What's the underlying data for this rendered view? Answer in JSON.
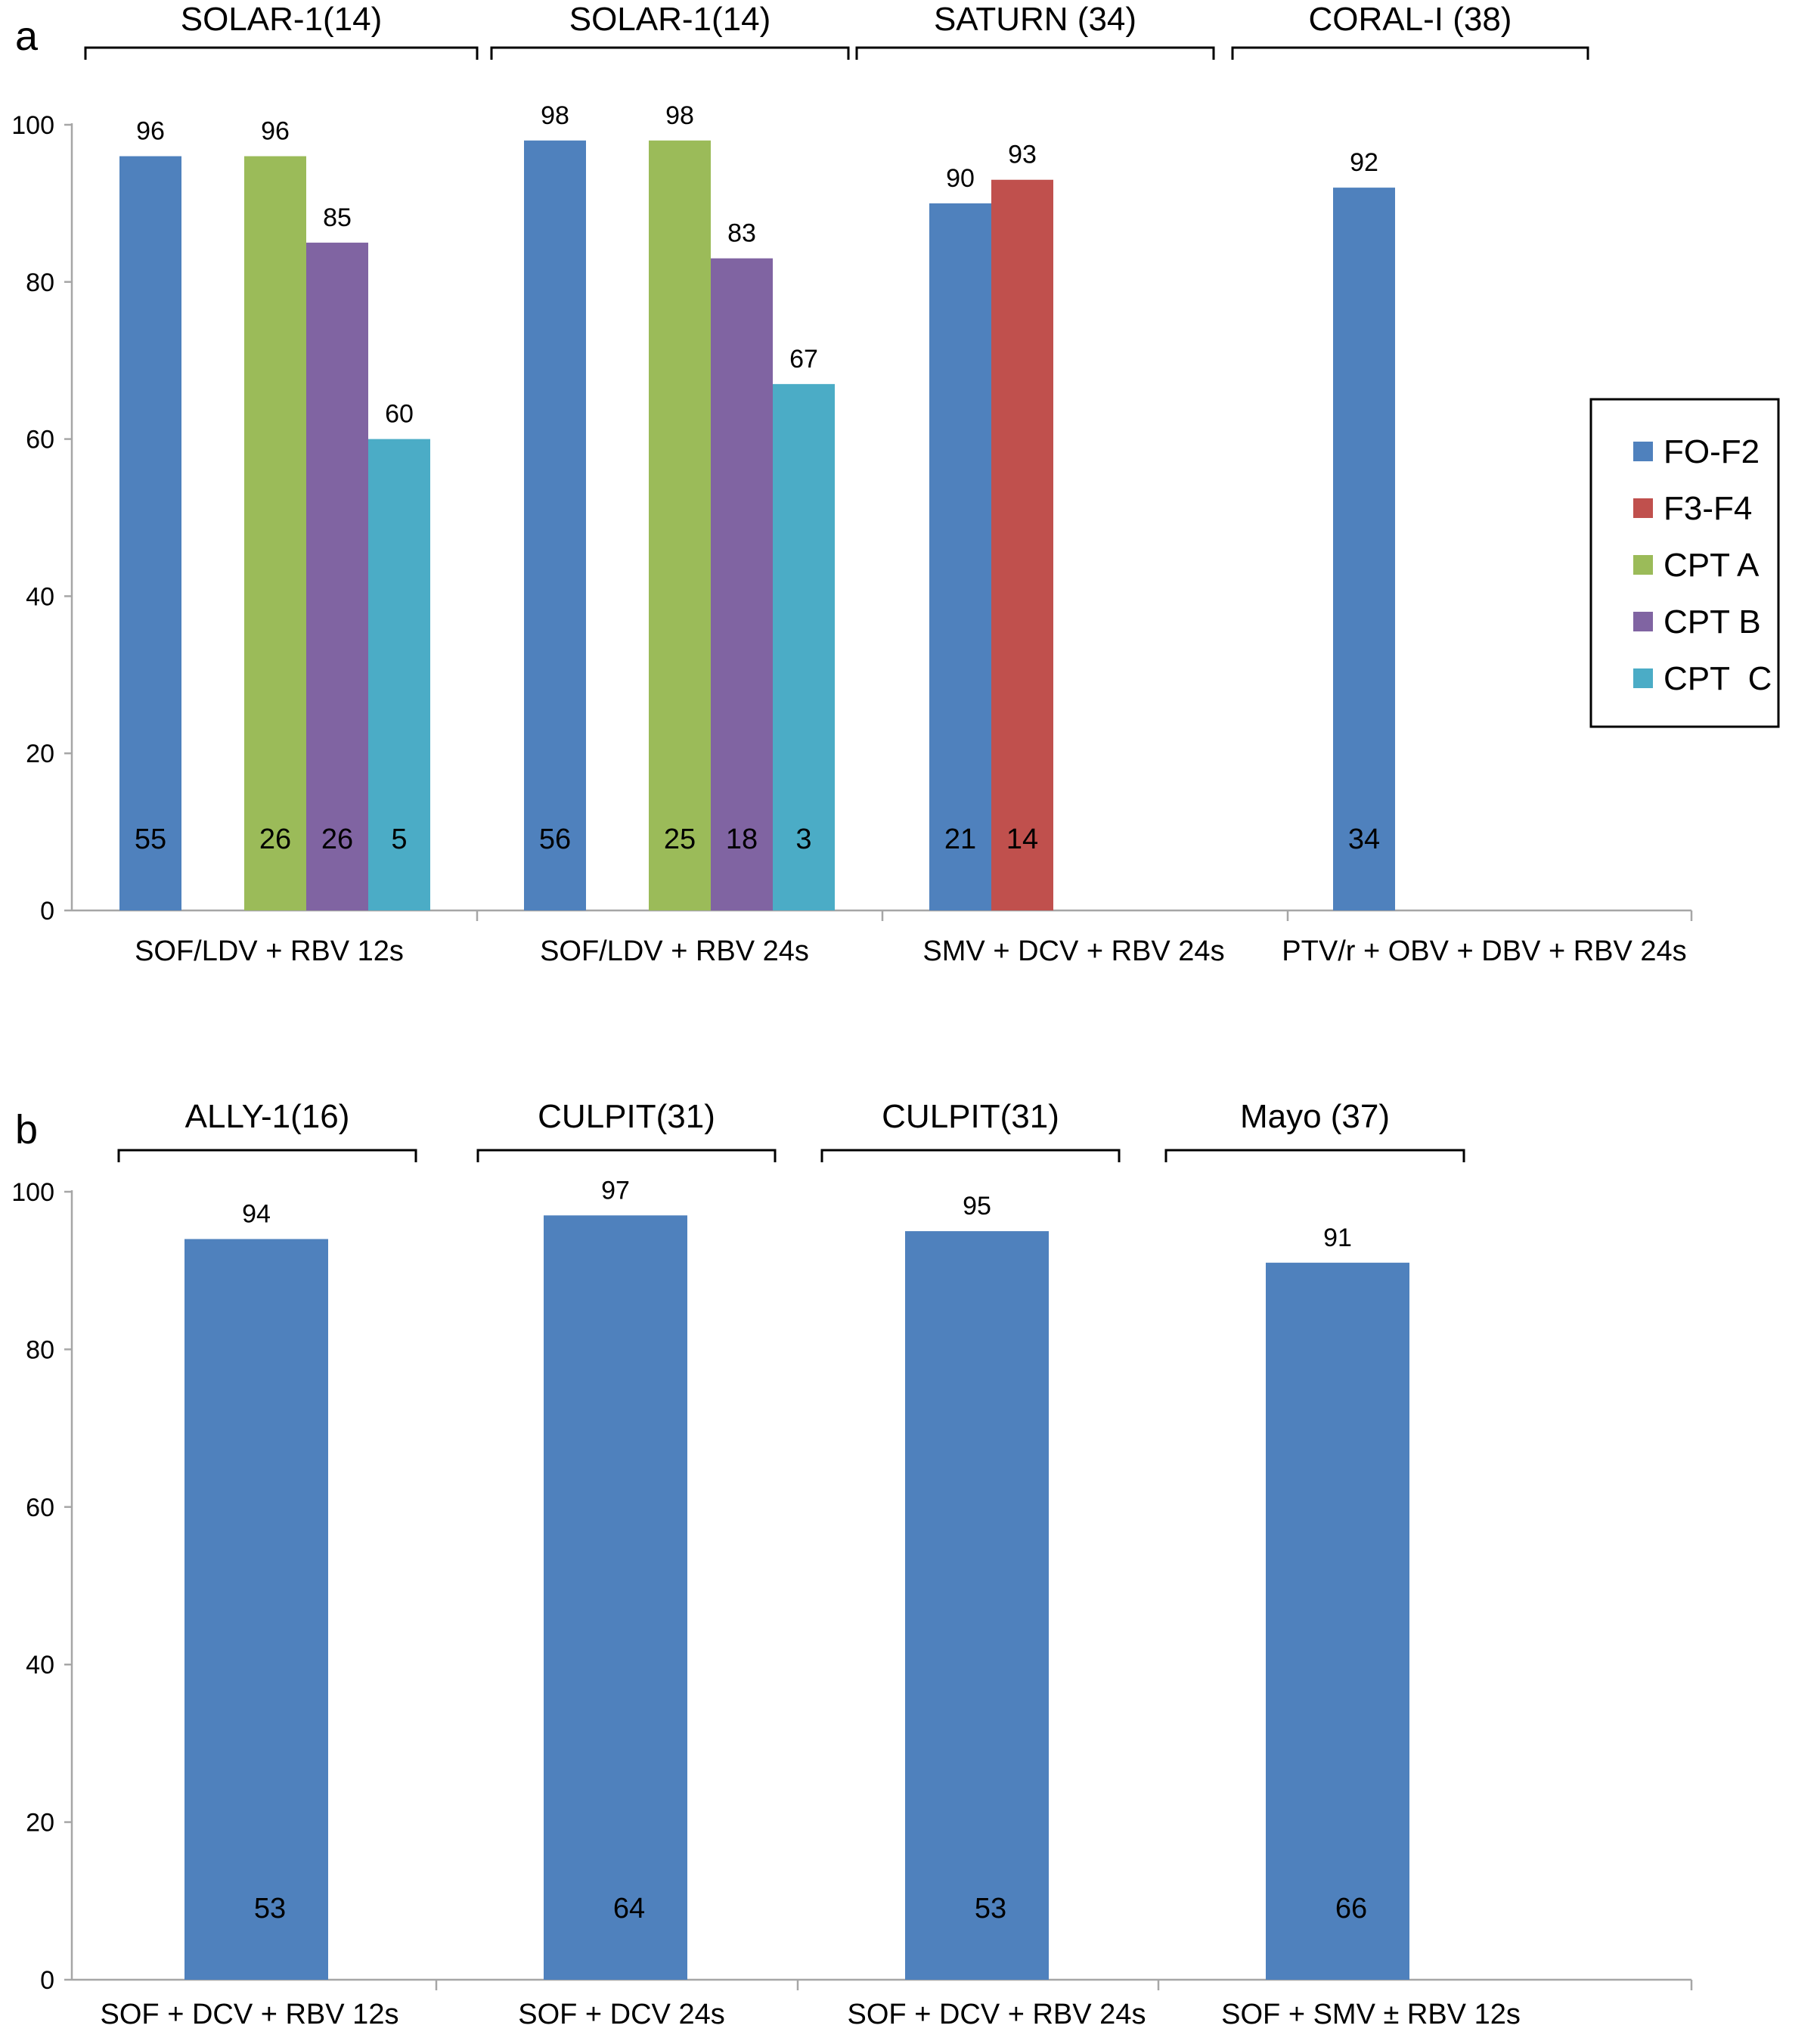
{
  "chart_data": [
    {
      "type": "bar",
      "panel_label": "a",
      "categories": [
        "SOF/LDV + RBV 12s",
        "SOF/LDV + RBV 24s",
        "SMV + DCV + RBV 24s",
        "PTV/r + OBV + DBV + RBV 24s"
      ],
      "studies": [
        "SOLAR-1(14)",
        "SOLAR-1(14)",
        "SATURN (34)",
        "CORAL-I (38)"
      ],
      "ylim": [
        0,
        100
      ],
      "yticks": [
        0,
        20,
        40,
        60,
        80,
        100
      ],
      "grid": false,
      "legend": {
        "position": "right",
        "entries": [
          {
            "name": "FO-F2",
            "color": "#4F81BD"
          },
          {
            "name": "F3-F4",
            "color": "#C0504D"
          },
          {
            "name": "CPT A",
            "color": "#9BBB59"
          },
          {
            "name": "CPT B",
            "color": "#8064A2"
          },
          {
            "name": "CPT  C",
            "color": "#4BACC6"
          }
        ]
      },
      "series": [
        {
          "name": "FO-F2",
          "color": "#4F81BD",
          "values": [
            96,
            98,
            90,
            92
          ],
          "n": [
            "55",
            "56",
            "21",
            "34"
          ]
        },
        {
          "name": "F3-F4",
          "color": "#C0504D",
          "values": [
            null,
            null,
            93,
            null
          ],
          "n": [
            null,
            null,
            "14",
            null
          ]
        },
        {
          "name": "CPT A",
          "color": "#9BBB59",
          "values": [
            96,
            98,
            null,
            null
          ],
          "n": [
            "26",
            "25",
            null,
            null
          ]
        },
        {
          "name": "CPT B",
          "color": "#8064A2",
          "values": [
            85,
            83,
            null,
            null
          ],
          "n": [
            "26",
            "18",
            null,
            null
          ]
        },
        {
          "name": "CPT  C",
          "color": "#4BACC6",
          "values": [
            60,
            67,
            null,
            null
          ],
          "n": [
            "5",
            "3",
            null,
            null
          ]
        }
      ]
    },
    {
      "type": "bar",
      "panel_label": "b",
      "categories": [
        "SOF + DCV + RBV 12s",
        "SOF + DCV 24s",
        "SOF + DCV + RBV 24s",
        "SOF + SMV ± RBV 12s"
      ],
      "studies": [
        "ALLY-1(16)",
        "CULPIT(31)",
        "CULPIT(31)",
        "Mayo (37)"
      ],
      "ylim": [
        0,
        100
      ],
      "yticks": [
        0,
        20,
        40,
        60,
        80,
        100
      ],
      "grid": false,
      "series": [
        {
          "color": "#4F81BD",
          "values": [
            94,
            97,
            95,
            91
          ],
          "n": [
            "53",
            "64",
            "53",
            "66"
          ]
        }
      ]
    }
  ]
}
